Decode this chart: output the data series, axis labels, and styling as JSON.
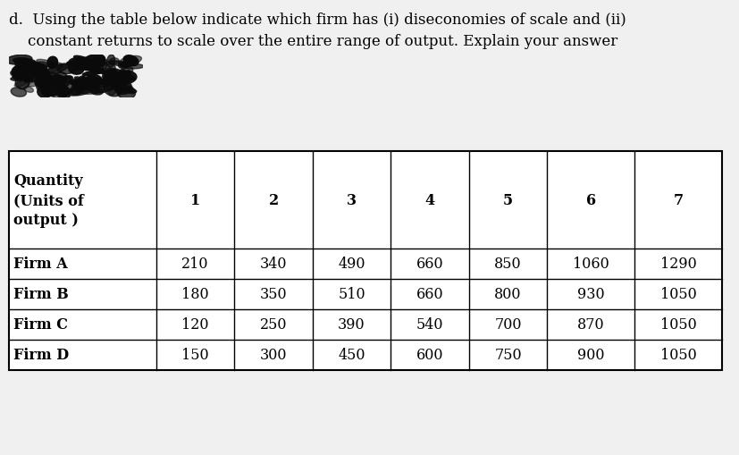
{
  "title_line1": "d.  Using the table below indicate which firm has (i) diseconomies of scale and (ii)",
  "title_line2": "    constant returns to scale over the entire range of output. Explain your answer",
  "background_color": "#f0f0f0",
  "table_bg": "#ffffff",
  "header_row": [
    "Quantity\n(Units of\noutput )",
    "1",
    "2",
    "3",
    "4",
    "5",
    "6",
    "7"
  ],
  "rows": [
    [
      "Firm A",
      "210",
      "340",
      "490",
      "660",
      "850",
      "1060",
      "1290"
    ],
    [
      "Firm B",
      "180",
      "350",
      "510",
      "660",
      "800",
      "930",
      "1050"
    ],
    [
      "Firm C",
      "120",
      "250",
      "390",
      "540",
      "700",
      "870",
      "1050"
    ],
    [
      "Firm D",
      "150",
      "300",
      "450",
      "600",
      "750",
      "900",
      "1050"
    ]
  ],
  "col_widths": [
    1.6,
    0.85,
    0.85,
    0.85,
    0.85,
    0.85,
    0.95,
    0.95
  ],
  "font_size": 11.5,
  "title_font_size": 12.0,
  "text_color": "#000000",
  "border_color": "#000000",
  "scribble_color": "#111111"
}
